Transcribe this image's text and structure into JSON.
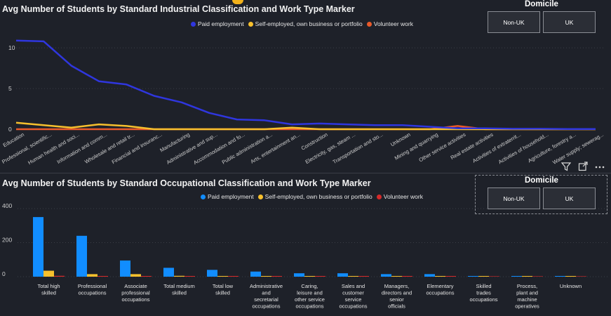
{
  "colors": {
    "paid": "#2f36de",
    "self": "#f7c02d",
    "volunteer": "#ea5a2a",
    "paid2": "#118dff",
    "volunteer2": "#d62a2a",
    "background": "#1e2129"
  },
  "chart1": {
    "title": "Avg Number of Students by Standard Industrial Classification and Work Type Marker",
    "legend": [
      "Paid employment",
      "Self-employed, own business or portfolio",
      "Volunteer work"
    ]
  },
  "chart2": {
    "title": "Avg Number of Students by Standard Occupational Classification and Work Type Marker",
    "legend": [
      "Paid employment",
      "Self-employed, own business or portfolio",
      "Volunteer work"
    ]
  },
  "slicer1": {
    "title": "Domicile",
    "options": [
      "Non-UK",
      "UK"
    ]
  },
  "slicer2": {
    "title": "Domicile",
    "options": [
      "Non-UK",
      "UK"
    ]
  },
  "icons": {
    "filter": "filter-icon",
    "focus": "focus-mode-icon",
    "more": "more-options-icon"
  },
  "chart_data": [
    {
      "type": "line",
      "title": "Avg Number of Students by Standard Industrial Classification and Work Type Marker",
      "categories": [
        "Education",
        "Professional, scientific...",
        "Human health and soci...",
        "Information and comm...",
        "Wholesale and retail tr...",
        "Financial and insuranc...",
        "Manufacturing",
        "Administrative and sup...",
        "Accommodation and fo...",
        "Public administration a...",
        "Arts, entertainment an...",
        "Construction",
        "Electricity, gas, steam ...",
        "Transportation and sto...",
        "Unknown",
        "Mining and quarrying",
        "Other service activities",
        "Real estate activities",
        "Activities of extraterrit...",
        "Activities of household...",
        "Agriculture, forestry a...",
        "Water supply; sewerag..."
      ],
      "yticks": [
        0,
        5,
        10
      ],
      "ylim": [
        0,
        12
      ],
      "series": [
        {
          "name": "Paid employment",
          "values": [
            10.9,
            10.8,
            7.8,
            5.9,
            5.5,
            4.1,
            3.3,
            2.0,
            1.2,
            1.1,
            0.6,
            0.7,
            0.6,
            0.5,
            0.5,
            0.3,
            0.1,
            0.1,
            0.05,
            0.05,
            0.03,
            0.03
          ]
        },
        {
          "name": "Self-employed, own business or portfolio",
          "values": [
            0.8,
            0.5,
            0.2,
            0.6,
            0.4,
            0.0,
            0.0,
            0.0,
            0.0,
            0.0,
            0.2,
            0.0,
            0.0,
            0.0,
            0.0,
            0.0,
            0.0,
            0.0,
            0.0,
            0.0,
            0.0,
            0.0
          ]
        },
        {
          "name": "Volunteer work",
          "values": [
            0.0,
            0.0,
            0.0,
            0.0,
            0.0,
            0.0,
            0.0,
            0.0,
            0.0,
            0.0,
            0.0,
            0.0,
            0.0,
            0.0,
            0.0,
            0.0,
            0.4,
            0.0,
            0.0,
            0.0,
            0.0,
            0.0
          ]
        }
      ]
    },
    {
      "type": "bar",
      "title": "Avg Number of Students by Standard Occupational Classification and Work Type Marker",
      "categories": [
        "Total high skilled",
        "Professional occupations",
        "Associate professional occupations",
        "Total medium skilled",
        "Total low skilled",
        "Administrative and secretarial occupations",
        "Caring, leisure and other service occupations",
        "Sales and customer service occupations",
        "Managers, directors and senior officials",
        "Elementary occupations",
        "Skilled trades occupations",
        "Process, plant and machine operatives",
        "Unknown"
      ],
      "yticks": [
        0,
        200,
        400
      ],
      "ylim": [
        0,
        420
      ],
      "series": [
        {
          "name": "Paid employment",
          "values": [
            350,
            240,
            95,
            52,
            40,
            30,
            20,
            20,
            15,
            15,
            3,
            2,
            2
          ]
        },
        {
          "name": "Self-employed, own business or portfolio",
          "values": [
            35,
            15,
            15,
            5,
            3,
            3,
            3,
            3,
            3,
            3,
            2,
            2,
            1
          ]
        },
        {
          "name": "Volunteer work",
          "values": [
            5,
            3,
            3,
            2,
            1,
            1,
            1,
            1,
            1,
            1,
            0,
            0,
            0
          ]
        }
      ]
    }
  ]
}
